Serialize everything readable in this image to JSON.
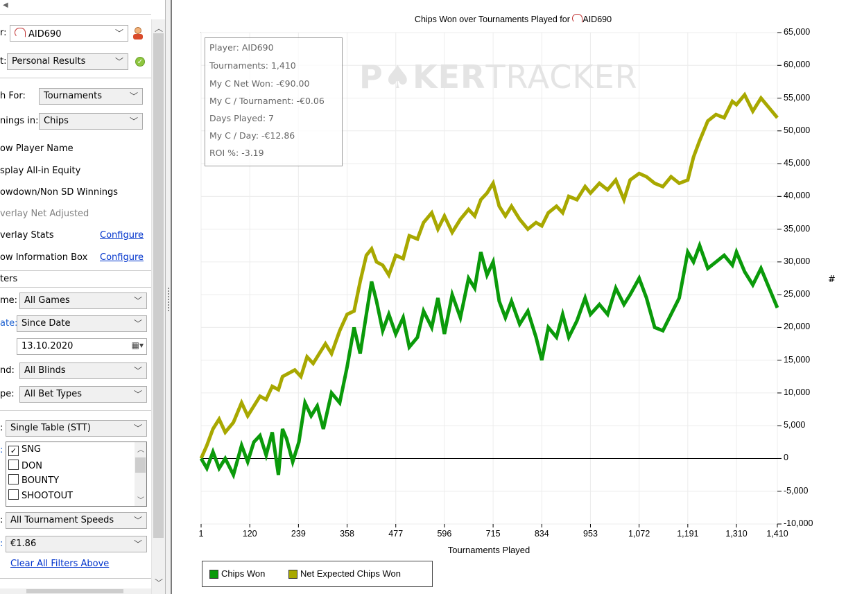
{
  "sidebar": {
    "top_arrow": "◀",
    "player_label": "r:",
    "player_value": "AID690",
    "report_label": "t:",
    "report_value": "Personal Results",
    "graph_for_label": "h For:",
    "graph_for_value": "Tournaments",
    "winnings_in_label": "nings in:",
    "winnings_in_value": "Chips",
    "options": {
      "show_player_name": "ow Player Name",
      "display_allin_equity": "splay All-in Equity",
      "showdown_winnings": "owdown/Non SD Winnings",
      "overlay_net_adjusted": "verlay Net Adjusted",
      "overlay_stats": "verlay Stats",
      "show_info_box": "ow Information Box"
    },
    "configure_label": "Configure",
    "filters_header": "ters",
    "game_label": "me:",
    "game_value": "All Games",
    "date_label": "ate:",
    "date_value": "Since Date",
    "date_input": "13.10.2020",
    "blinds_label": "nd:",
    "blinds_value": "All Blinds",
    "bet_type_label": "pe:",
    "bet_type_value": "All Bet Types",
    "table_label": ":",
    "table_value": "Single Table (STT)",
    "type_label": ":",
    "tournament_types": [
      {
        "label": "SNG",
        "checked": true
      },
      {
        "label": "DON",
        "checked": false
      },
      {
        "label": "BOUNTY",
        "checked": false
      },
      {
        "label": "SHOOTOUT",
        "checked": false
      }
    ],
    "speed_label": ":",
    "speed_value": "All Tournament Speeds",
    "buyin_label": ":",
    "buyin_value": "€1.86",
    "clear_filters": "Clear All Filters Above"
  },
  "chart_title": "Chips Won over Tournaments Played for",
  "chart_title_player": "AID690",
  "watermark": {
    "bold": "P♠KER",
    "thin": "TRACKER"
  },
  "info_box": [
    "Player: AID690",
    "Tournaments: 1,410",
    "My C Net Won: -€90.00",
    "My C / Tournament: -€0.06",
    "Days Played: 7",
    "My C / Day: -€12.86",
    "ROI %: -3.19"
  ],
  "chart_data": {
    "type": "line",
    "title": "Chips Won over Tournaments Played for AID690",
    "xlabel": "Tournaments Played",
    "ylabel": "#",
    "xlim": [
      1,
      1410
    ],
    "ylim": [
      -10000,
      65000
    ],
    "x_ticks": [
      "1",
      "120",
      "239",
      "358",
      "477",
      "596",
      "715",
      "834",
      "953",
      "1,072",
      "1,191",
      "1,310",
      "1,410"
    ],
    "y_ticks": [
      "65,000",
      "60,000",
      "55,000",
      "50,000",
      "45,000",
      "40,000",
      "35,000",
      "30,000",
      "25,000",
      "20,000",
      "15,000",
      "10,000",
      "5,000",
      "0",
      "-5,000",
      "-10,000"
    ],
    "legend_position": "bottom-left",
    "series": [
      {
        "name": "Chips Won",
        "color": "#0a9a0a",
        "x": [
          1,
          15,
          30,
          45,
          60,
          80,
          100,
          115,
          130,
          145,
          160,
          175,
          190,
          200,
          210,
          225,
          240,
          255,
          270,
          285,
          300,
          320,
          340,
          358,
          375,
          390,
          405,
          418,
          430,
          445,
          460,
          477,
          495,
          510,
          530,
          545,
          565,
          580,
          596,
          615,
          635,
          655,
          670,
          685,
          700,
          715,
          730,
          745,
          760,
          780,
          800,
          820,
          834,
          850,
          870,
          885,
          900,
          920,
          940,
          953,
          975,
          995,
          1015,
          1035,
          1050,
          1072,
          1090,
          1110,
          1130,
          1150,
          1170,
          1191,
          1205,
          1220,
          1240,
          1260,
          1280,
          1300,
          1310,
          1330,
          1350,
          1370,
          1390,
          1410
        ],
        "values": [
          0,
          -1500,
          1000,
          -1500,
          0,
          -2500,
          2000,
          -500,
          2500,
          3500,
          500,
          4000,
          -2500,
          4500,
          3000,
          -500,
          2500,
          8500,
          6500,
          8000,
          4500,
          10000,
          8500,
          14000,
          20000,
          16000,
          22000,
          27000,
          24000,
          19500,
          22000,
          19000,
          21500,
          17000,
          18500,
          22500,
          20000,
          24500,
          19000,
          25000,
          21500,
          27500,
          26000,
          31500,
          28000,
          30000,
          24000,
          21500,
          24000,
          20500,
          22500,
          18500,
          15000,
          20000,
          18500,
          22000,
          18500,
          21000,
          24500,
          22000,
          23500,
          22000,
          26000,
          23500,
          25000,
          27500,
          24500,
          20000,
          19500,
          22000,
          24500,
          31500,
          30000,
          32500,
          29000,
          30000,
          31000,
          29500,
          31500,
          28500,
          26500,
          29000,
          26000,
          23000
        ]
      },
      {
        "name": "Net Expected Chips Won",
        "color": "#a8a800",
        "x": [
          1,
          15,
          30,
          45,
          60,
          80,
          100,
          115,
          130,
          145,
          160,
          175,
          190,
          200,
          215,
          230,
          245,
          260,
          275,
          290,
          305,
          320,
          340,
          358,
          375,
          390,
          405,
          418,
          430,
          445,
          460,
          477,
          495,
          510,
          530,
          545,
          565,
          580,
          596,
          615,
          635,
          655,
          670,
          685,
          700,
          715,
          730,
          745,
          760,
          780,
          800,
          820,
          834,
          850,
          870,
          885,
          900,
          920,
          940,
          953,
          975,
          995,
          1015,
          1035,
          1050,
          1072,
          1090,
          1110,
          1130,
          1150,
          1170,
          1191,
          1205,
          1220,
          1240,
          1260,
          1280,
          1300,
          1310,
          1330,
          1350,
          1370,
          1390,
          1410
        ],
        "values": [
          0,
          2000,
          4500,
          6000,
          4000,
          5500,
          8500,
          6500,
          8000,
          9500,
          9000,
          11000,
          10500,
          12500,
          13000,
          13500,
          12500,
          15500,
          14500,
          16000,
          17500,
          16000,
          19500,
          22000,
          22500,
          27000,
          31000,
          32000,
          30000,
          29500,
          28000,
          31000,
          30500,
          34000,
          33500,
          36000,
          37500,
          35000,
          37000,
          34500,
          36500,
          38000,
          37000,
          39500,
          40500,
          42000,
          38500,
          37000,
          38500,
          36500,
          35000,
          36000,
          35500,
          37500,
          38500,
          37500,
          40000,
          39500,
          41500,
          40500,
          42000,
          41000,
          42500,
          39500,
          42500,
          43500,
          43000,
          42000,
          41500,
          43000,
          42000,
          42500,
          46000,
          48500,
          51500,
          52500,
          52000,
          54500,
          54000,
          55500,
          53000,
          55000,
          53500,
          52000
        ]
      }
    ]
  }
}
